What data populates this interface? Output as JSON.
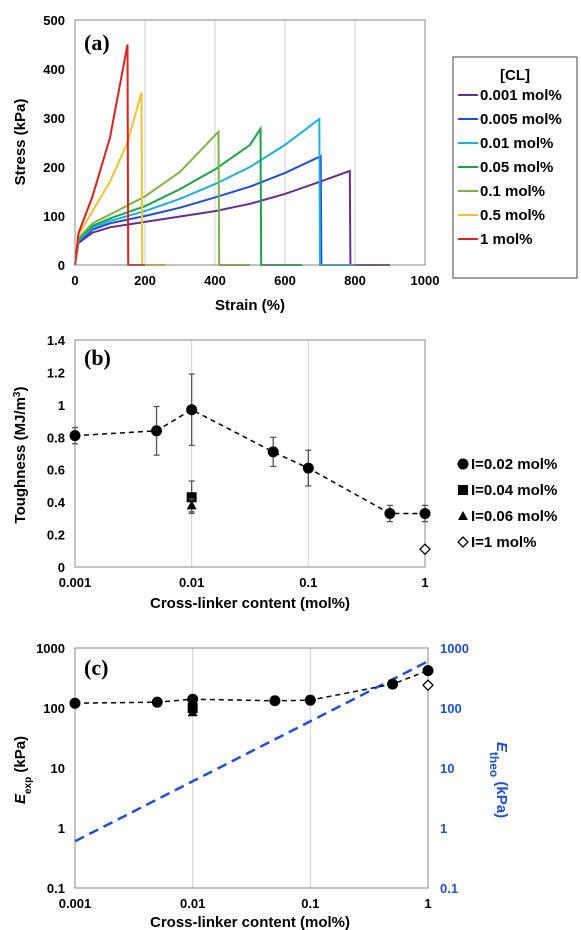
{
  "chart_data": [
    {
      "type": "line",
      "panel": "(a)",
      "xlabel": "Strain (%)",
      "ylabel": "Stress (kPa)",
      "xlim": [
        0,
        1000
      ],
      "ylim": [
        0,
        500
      ],
      "xticks": [
        "0",
        "200",
        "400",
        "600",
        "800",
        "1000"
      ],
      "yticks": [
        "0",
        "100",
        "200",
        "300",
        "400",
        "500"
      ],
      "grid": "vertical",
      "legend": {
        "title": "[CL]",
        "position": "right"
      },
      "series": [
        {
          "name": "0.001 mol%",
          "color": "#6a2c91",
          "x": [
            0,
            10,
            50,
            100,
            200,
            300,
            400,
            500,
            600,
            700,
            785,
            787,
            900
          ],
          "y": [
            0,
            45,
            66,
            77,
            88,
            99,
            110,
            125,
            145,
            170,
            192,
            0,
            0
          ]
        },
        {
          "name": "0.005 mol%",
          "color": "#1f4fd8",
          "x": [
            0,
            10,
            50,
            100,
            200,
            300,
            400,
            500,
            600,
            702,
            704,
            800
          ],
          "y": [
            0,
            48,
            72,
            85,
            100,
            117,
            138,
            160,
            188,
            222,
            0,
            0
          ]
        },
        {
          "name": "0.01 mol%",
          "color": "#1ab0e0",
          "x": [
            0,
            10,
            50,
            100,
            200,
            300,
            400,
            500,
            600,
            698,
            700,
            800
          ],
          "y": [
            0,
            50,
            76,
            90,
            110,
            135,
            165,
            200,
            245,
            298,
            0,
            0
          ]
        },
        {
          "name": "0.05 mol%",
          "color": "#1aa34a",
          "x": [
            0,
            10,
            50,
            100,
            200,
            300,
            400,
            500,
            530,
            532,
            650
          ],
          "y": [
            0,
            52,
            80,
            95,
            120,
            155,
            195,
            245,
            278,
            0,
            0
          ]
        },
        {
          "name": "0.1 mol%",
          "color": "#7cb342",
          "x": [
            0,
            10,
            50,
            100,
            200,
            300,
            410,
            412,
            500
          ],
          "y": [
            0,
            55,
            85,
            103,
            140,
            190,
            272,
            0,
            0
          ]
        },
        {
          "name": "0.5 mol%",
          "color": "#f2c12e",
          "x": [
            0,
            10,
            50,
            100,
            150,
            190,
            192,
            260
          ],
          "y": [
            0,
            62,
            110,
            170,
            250,
            352,
            0,
            0
          ]
        },
        {
          "name": "1 mol%",
          "color": "#e02020",
          "x": [
            0,
            10,
            50,
            100,
            150,
            152,
            200
          ],
          "y": [
            0,
            65,
            140,
            260,
            450,
            0,
            0
          ]
        }
      ]
    },
    {
      "type": "scatter",
      "panel": "(b)",
      "xlabel": "Cross-linker content (mol%)",
      "ylabel_main": "Toughness (MJ/m",
      "ylabel_sup": "3",
      "ylabel_tail": ")",
      "xscale": "log",
      "xlim": [
        0.001,
        1
      ],
      "ylim": [
        0,
        1.4
      ],
      "xticks": [
        "0.001",
        "0.01",
        "0.1",
        "1"
      ],
      "yticks": [
        "0",
        "0.2",
        "0.4",
        "0.6",
        "0.8",
        "1",
        "1.2",
        "1.4"
      ],
      "grid": "vertical",
      "legend": {
        "position": "right"
      },
      "series": [
        {
          "name": "I=0.02 mol%",
          "marker": "circle",
          "dashed_fit": true,
          "x": [
            0.001,
            0.005,
            0.01,
            0.05,
            0.1,
            0.5,
            1
          ],
          "y": [
            0.81,
            0.84,
            0.97,
            0.71,
            0.61,
            0.33,
            0.33
          ],
          "err": [
            0.05,
            0.15,
            0.22,
            0.09,
            0.11,
            0.05,
            0.05
          ]
        },
        {
          "name": "I=0.04 mol%",
          "marker": "square",
          "x": [
            0.01
          ],
          "y": [
            0.43
          ],
          "err": [
            0.1
          ]
        },
        {
          "name": "I=0.06 mol%",
          "marker": "triangle",
          "x": [
            0.01
          ],
          "y": [
            0.38
          ],
          "err": [
            0.04
          ]
        },
        {
          "name": "I=1 mol%",
          "marker": "diamond-open",
          "x": [
            1
          ],
          "y": [
            0.11
          ],
          "err": [
            0
          ]
        }
      ]
    },
    {
      "type": "scatter",
      "panel": "(c)",
      "xlabel": "Cross-linker content (mol%)",
      "ylabel_left_main": "E",
      "ylabel_left_sub": "exp",
      "ylabel_left_tail": " (kPa)",
      "ylabel_right_main": "E",
      "ylabel_right_sub": "theo",
      "ylabel_right_tail": " (kPa)",
      "xscale": "log",
      "yscale": "log",
      "xlim": [
        0.001,
        1
      ],
      "ylim": [
        0.1,
        1000
      ],
      "xticks": [
        "0.001",
        "0.01",
        "0.1",
        "1"
      ],
      "yticks": [
        "0.1",
        "1",
        "10",
        "100",
        "1000"
      ],
      "right_axis_color": "#1f4fd8",
      "grid": "vertical",
      "series": [
        {
          "name": "E_exp I=0.02",
          "marker": "circle",
          "dashed_fit": true,
          "x": [
            0.001,
            0.005,
            0.01,
            0.05,
            0.1,
            0.5,
            1
          ],
          "y": [
            120,
            125,
            140,
            132,
            135,
            250,
            420
          ]
        },
        {
          "name": "E_exp I=0.04",
          "marker": "square",
          "x": [
            0.01
          ],
          "y": [
            100
          ]
        },
        {
          "name": "E_exp I=0.06",
          "marker": "triangle",
          "x": [
            0.01
          ],
          "y": [
            85
          ]
        },
        {
          "name": "E_exp I=1",
          "marker": "diamond-open",
          "x": [
            1
          ],
          "y": [
            240
          ]
        },
        {
          "name": "E_theo",
          "line": "dashed-blue",
          "x": [
            0.001,
            1
          ],
          "y": [
            0.6,
            600
          ]
        }
      ]
    }
  ]
}
